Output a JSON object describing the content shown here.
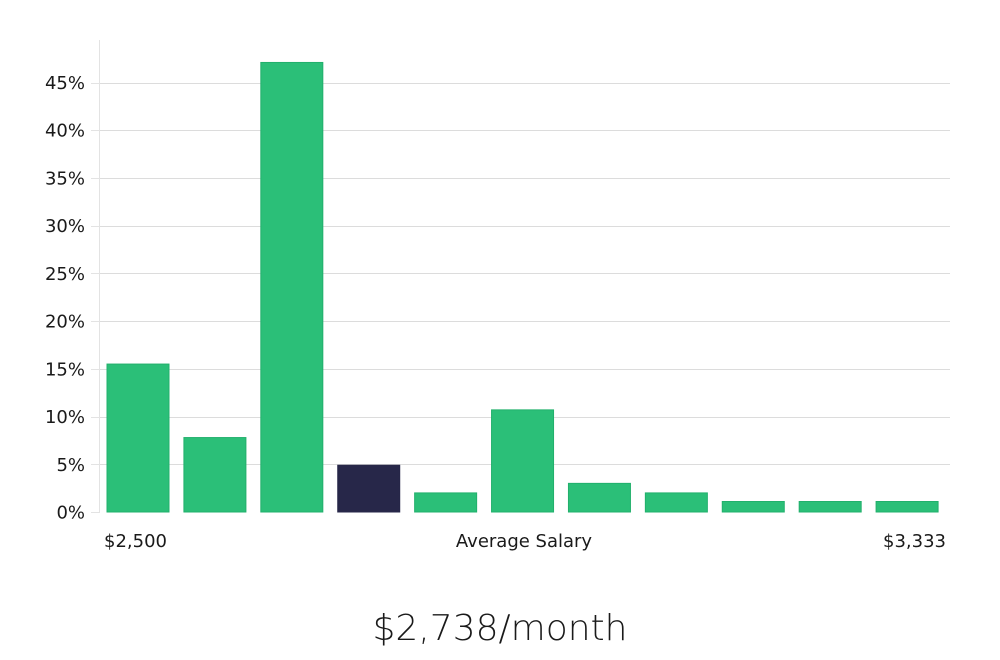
{
  "chart_data": {
    "type": "bar",
    "xlabel": "Average Salary",
    "x_start_label": "$2,500",
    "x_end_label": "$3,333",
    "values": [
      15.5,
      7.8,
      47.1,
      4.9,
      2.0,
      10.7,
      3.0,
      2.0,
      1.1,
      1.1,
      1.1
    ],
    "highlight_index": 3,
    "y_ticks": [
      0,
      5,
      10,
      15,
      20,
      25,
      30,
      35,
      40,
      45
    ],
    "y_tick_format": "%",
    "ylim": [
      0,
      49
    ],
    "grid": true,
    "colors": {
      "bar": "#2bbf78",
      "bar_border": "#22b06c",
      "highlight": "#272749"
    }
  },
  "caption": "$2,738/month"
}
